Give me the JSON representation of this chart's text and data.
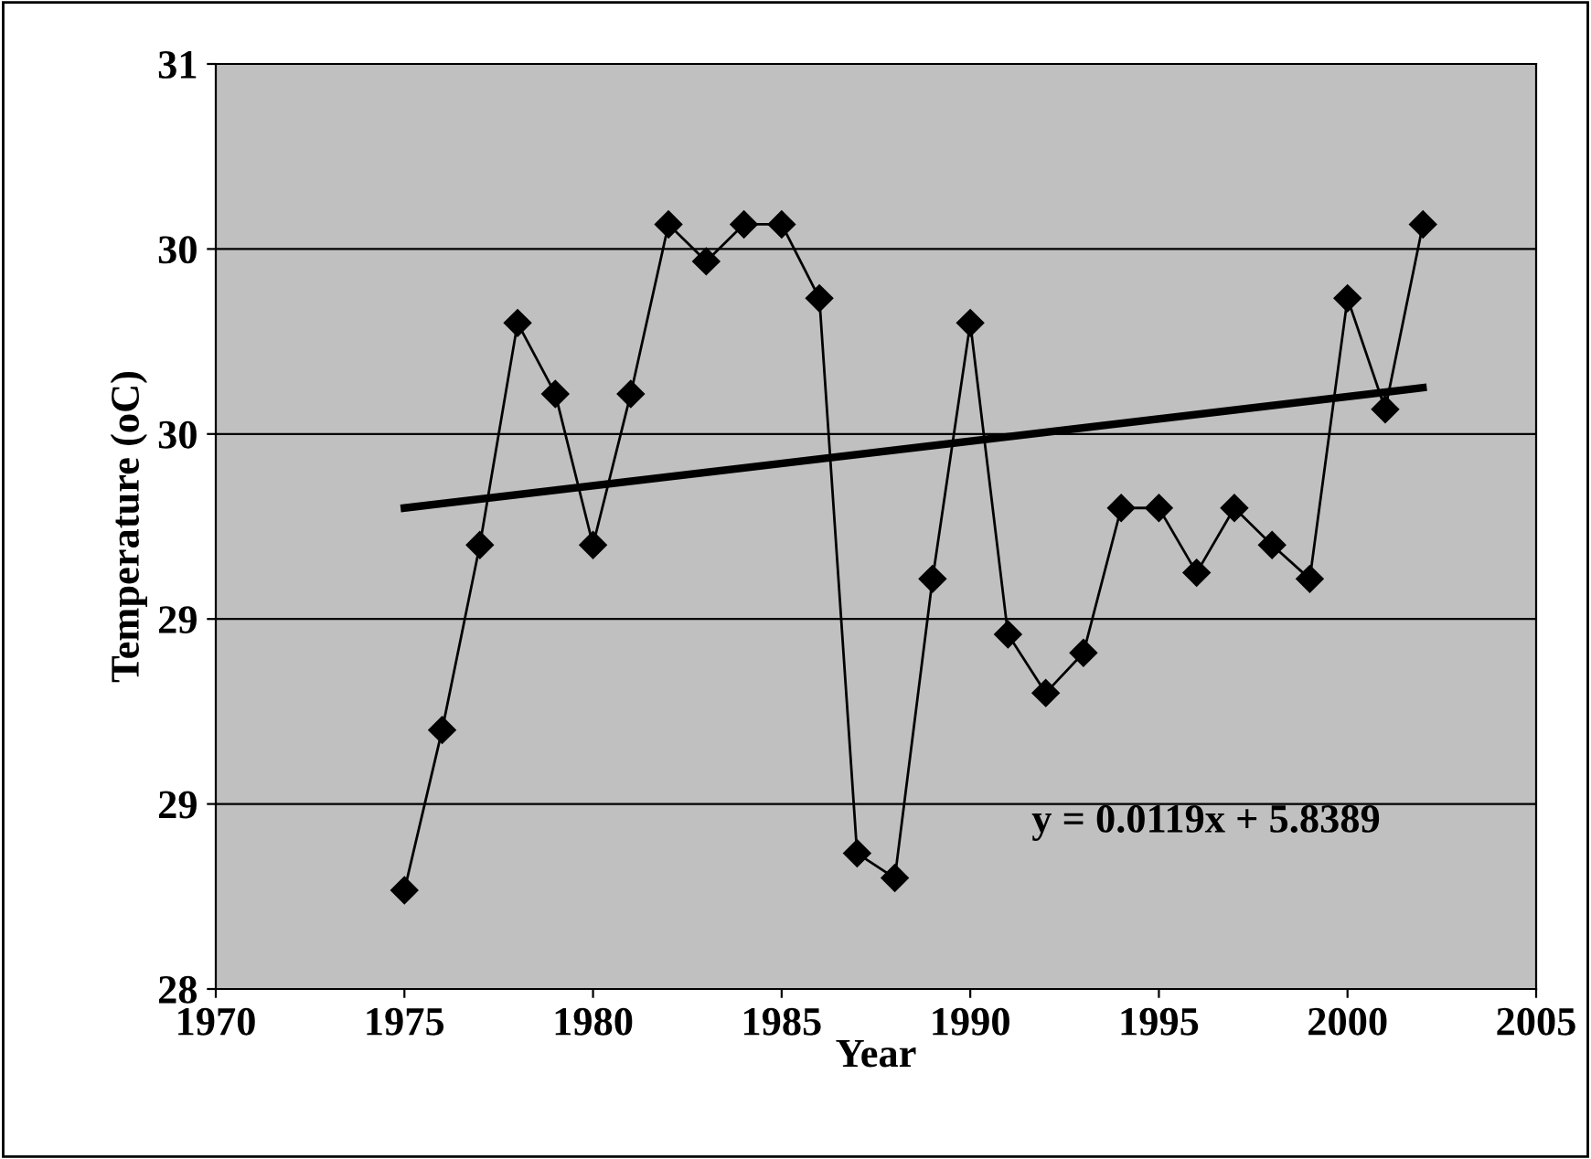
{
  "chart_data": {
    "type": "line",
    "xlabel": "Year",
    "ylabel": "Temperature (oC)",
    "xlim": [
      1970,
      2005
    ],
    "xticks": [
      1970,
      1975,
      1980,
      1985,
      1990,
      1995,
      2000,
      2005
    ],
    "ylim": [
      28,
      31
    ],
    "yticks": [
      28,
      {
        "value": 28.6,
        "label": "29"
      },
      {
        "value": 29.2,
        "label": "29"
      },
      {
        "value": 29.8,
        "label": "30"
      },
      {
        "value": 30.4,
        "label": "30"
      },
      31
    ],
    "grid": "y",
    "legend": false,
    "series": [
      {
        "color": "#000000",
        "marker": "diamond",
        "line_style": "solid",
        "x": [
          1975,
          1976,
          1977,
          1978,
          1979,
          1980,
          1981,
          1982,
          1983,
          1984,
          1985,
          1986,
          1987,
          1988,
          1989,
          1990,
          1991,
          1992,
          1993,
          1994,
          1995,
          1996,
          1997,
          1998,
          1999,
          2000,
          2001,
          2002
        ],
        "values": [
          28.32,
          28.84,
          29.44,
          30.16,
          29.93,
          29.44,
          29.93,
          30.48,
          30.36,
          30.48,
          30.48,
          30.24,
          28.44,
          28.36,
          29.33,
          30.16,
          29.15,
          28.96,
          29.09,
          29.56,
          29.56,
          29.35,
          29.56,
          29.44,
          29.33,
          30.24,
          29.88,
          30.48
        ]
      },
      {
        "type": "line",
        "color": "#000000",
        "marker": "none",
        "line_style": "solid",
        "x": [
          1975,
          2002
        ],
        "values": [
          29.56,
          29.95
        ]
      }
    ],
    "annotations": [
      "y = 0.0119x + 5.8389"
    ]
  }
}
